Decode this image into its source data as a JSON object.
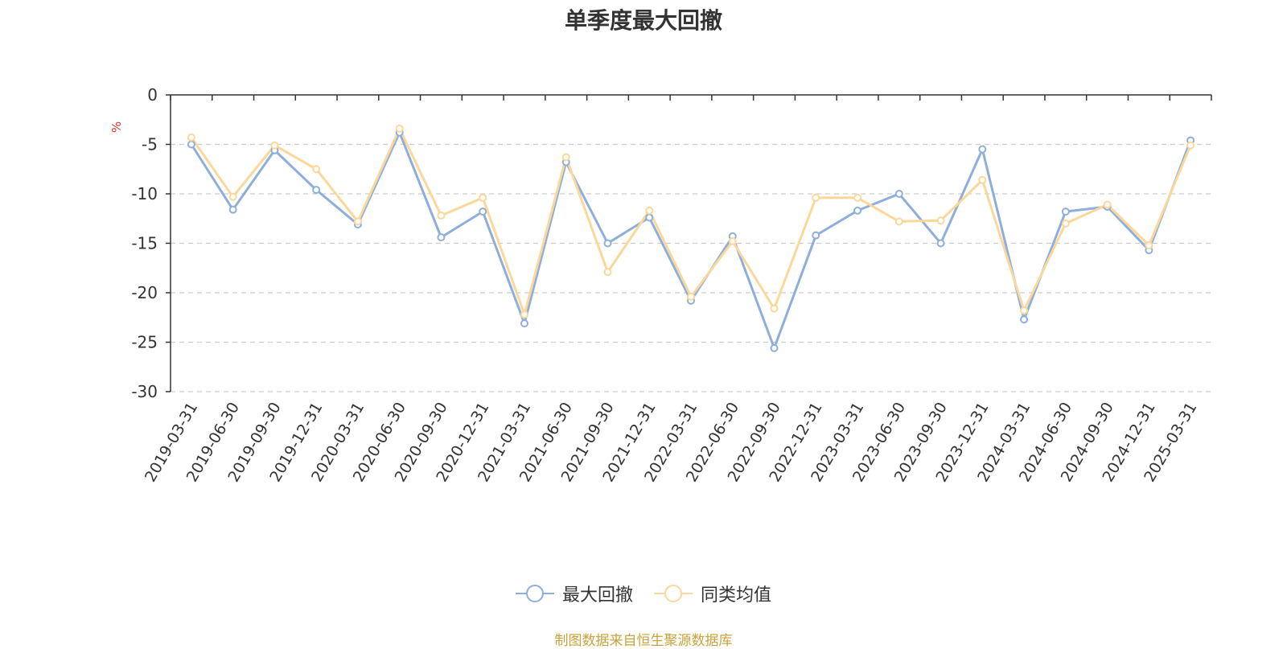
{
  "chart_data": {
    "type": "line",
    "title": "单季度最大回撤",
    "ylabel": "%",
    "ylim": [
      -30,
      0
    ],
    "yticks": [
      0,
      -5,
      -10,
      -15,
      -20,
      -25,
      -30
    ],
    "grid": true,
    "legend_position": "bottom",
    "x": [
      "2019-03-31",
      "2019-06-30",
      "2019-09-30",
      "2019-12-31",
      "2020-03-31",
      "2020-06-30",
      "2020-09-30",
      "2020-12-31",
      "2021-03-31",
      "2021-06-30",
      "2021-09-30",
      "2021-12-31",
      "2022-03-31",
      "2022-06-30",
      "2022-09-30",
      "2022-12-31",
      "2023-03-31",
      "2023-06-30",
      "2023-09-30",
      "2023-12-31",
      "2024-03-31",
      "2024-06-30",
      "2024-09-30",
      "2024-12-31",
      "2025-03-31"
    ],
    "series": [
      {
        "name": "最大回撤",
        "color": "#8eaedb",
        "values": [
          -5.0,
          -11.6,
          -5.6,
          -9.6,
          -13.1,
          -3.8,
          -14.4,
          -11.8,
          -23.1,
          -6.8,
          -15.0,
          -12.4,
          -20.8,
          -14.3,
          -25.6,
          -14.2,
          -11.7,
          -10.0,
          -15.0,
          -5.5,
          -22.7,
          -11.8,
          -11.3,
          -15.7,
          -4.6
        ]
      },
      {
        "name": "同类均值",
        "color": "#fbd89a",
        "values": [
          -4.3,
          -10.3,
          -5.1,
          -7.5,
          -12.8,
          -3.4,
          -12.2,
          -10.4,
          -22.2,
          -6.3,
          -17.9,
          -11.7,
          -20.4,
          -14.8,
          -21.6,
          -10.4,
          -10.4,
          -12.8,
          -12.7,
          -8.6,
          -21.8,
          -13.0,
          -11.1,
          -15.2,
          -5.1
        ]
      }
    ]
  },
  "source_note": "制图数据来自恒生聚源数据库"
}
